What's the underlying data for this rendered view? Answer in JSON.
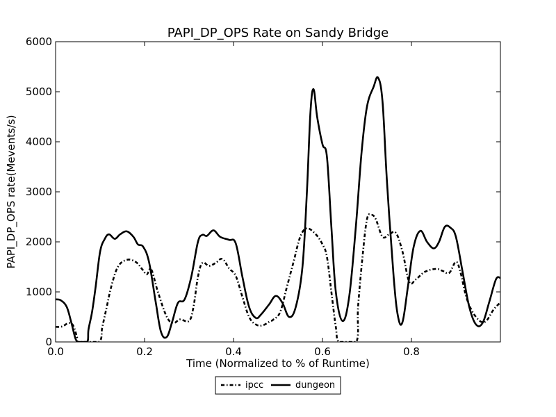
{
  "chart_data": {
    "type": "line",
    "title": "PAPI_DP_OPS Rate on Sandy Bridge",
    "xlabel": "Time (Normalized to % of Runtime)",
    "ylabel": "PAPI_DP_OPS rate(Mevents/s)",
    "xlim": [
      0.0,
      1.0
    ],
    "ylim": [
      0,
      6000
    ],
    "x_ticks": [
      0.0,
      0.2,
      0.4,
      0.6,
      0.8
    ],
    "x_tick_labels": [
      "0.0",
      "0.2",
      "0.4",
      "0.6",
      "0.8"
    ],
    "y_ticks": [
      0,
      1000,
      2000,
      3000,
      4000,
      5000,
      6000
    ],
    "y_tick_labels": [
      "0",
      "1000",
      "2000",
      "3000",
      "4000",
      "5000",
      "6000"
    ],
    "grid": false,
    "legend_position": "bottom-center, below axes",
    "series": [
      {
        "name": "ipcc",
        "style": "dash-dot",
        "color": "#000000",
        "points": [
          [
            0.0,
            300
          ],
          [
            0.015,
            310
          ],
          [
            0.03,
            380
          ],
          [
            0.04,
            320
          ],
          [
            0.048,
            100
          ],
          [
            0.052,
            0
          ],
          [
            0.097,
            0
          ],
          [
            0.105,
            300
          ],
          [
            0.115,
            700
          ],
          [
            0.125,
            1100
          ],
          [
            0.14,
            1500
          ],
          [
            0.16,
            1640
          ],
          [
            0.18,
            1600
          ],
          [
            0.195,
            1450
          ],
          [
            0.205,
            1350
          ],
          [
            0.215,
            1450
          ],
          [
            0.23,
            1000
          ],
          [
            0.25,
            500
          ],
          [
            0.265,
            380
          ],
          [
            0.28,
            450
          ],
          [
            0.3,
            420
          ],
          [
            0.31,
            700
          ],
          [
            0.32,
            1300
          ],
          [
            0.33,
            1580
          ],
          [
            0.345,
            1520
          ],
          [
            0.36,
            1580
          ],
          [
            0.375,
            1660
          ],
          [
            0.39,
            1470
          ],
          [
            0.405,
            1320
          ],
          [
            0.42,
            900
          ],
          [
            0.435,
            500
          ],
          [
            0.45,
            350
          ],
          [
            0.465,
            330
          ],
          [
            0.48,
            400
          ],
          [
            0.49,
            450
          ],
          [
            0.505,
            600
          ],
          [
            0.52,
            1100
          ],
          [
            0.535,
            1600
          ],
          [
            0.55,
            2100
          ],
          [
            0.565,
            2270
          ],
          [
            0.585,
            2150
          ],
          [
            0.6,
            1950
          ],
          [
            0.61,
            1700
          ],
          [
            0.62,
            1000
          ],
          [
            0.63,
            300
          ],
          [
            0.638,
            0
          ],
          [
            0.676,
            0
          ],
          [
            0.68,
            700
          ],
          [
            0.69,
            1700
          ],
          [
            0.7,
            2450
          ],
          [
            0.71,
            2540
          ],
          [
            0.72,
            2450
          ],
          [
            0.735,
            2100
          ],
          [
            0.75,
            2150
          ],
          [
            0.765,
            2180
          ],
          [
            0.78,
            1800
          ],
          [
            0.795,
            1200
          ],
          [
            0.81,
            1250
          ],
          [
            0.83,
            1400
          ],
          [
            0.855,
            1460
          ],
          [
            0.87,
            1420
          ],
          [
            0.885,
            1380
          ],
          [
            0.9,
            1600
          ],
          [
            0.91,
            1400
          ],
          [
            0.925,
            850
          ],
          [
            0.945,
            500
          ],
          [
            0.965,
            400
          ],
          [
            0.985,
            650
          ],
          [
            1.0,
            790
          ]
        ]
      },
      {
        "name": "dungeon",
        "style": "solid",
        "color": "#000000",
        "points": [
          [
            0.0,
            850
          ],
          [
            0.012,
            830
          ],
          [
            0.025,
            700
          ],
          [
            0.035,
            400
          ],
          [
            0.045,
            60
          ],
          [
            0.052,
            0
          ],
          [
            0.071,
            0
          ],
          [
            0.074,
            250
          ],
          [
            0.082,
            600
          ],
          [
            0.09,
            1100
          ],
          [
            0.1,
            1800
          ],
          [
            0.11,
            2050
          ],
          [
            0.12,
            2150
          ],
          [
            0.133,
            2060
          ],
          [
            0.145,
            2150
          ],
          [
            0.16,
            2210
          ],
          [
            0.175,
            2100
          ],
          [
            0.185,
            1950
          ],
          [
            0.197,
            1900
          ],
          [
            0.21,
            1600
          ],
          [
            0.225,
            800
          ],
          [
            0.237,
            200
          ],
          [
            0.25,
            100
          ],
          [
            0.262,
            400
          ],
          [
            0.275,
            780
          ],
          [
            0.29,
            850
          ],
          [
            0.305,
            1300
          ],
          [
            0.32,
            2000
          ],
          [
            0.33,
            2140
          ],
          [
            0.34,
            2120
          ],
          [
            0.355,
            2230
          ],
          [
            0.37,
            2100
          ],
          [
            0.39,
            2040
          ],
          [
            0.405,
            1970
          ],
          [
            0.42,
            1300
          ],
          [
            0.435,
            700
          ],
          [
            0.45,
            480
          ],
          [
            0.462,
            550
          ],
          [
            0.48,
            750
          ],
          [
            0.495,
            920
          ],
          [
            0.51,
            780
          ],
          [
            0.525,
            500
          ],
          [
            0.54,
            700
          ],
          [
            0.555,
            1500
          ],
          [
            0.565,
            3000
          ],
          [
            0.573,
            4600
          ],
          [
            0.58,
            5050
          ],
          [
            0.588,
            4500
          ],
          [
            0.6,
            3950
          ],
          [
            0.61,
            3700
          ],
          [
            0.62,
            2300
          ],
          [
            0.63,
            1000
          ],
          [
            0.645,
            420
          ],
          [
            0.66,
            900
          ],
          [
            0.675,
            2300
          ],
          [
            0.688,
            3800
          ],
          [
            0.7,
            4700
          ],
          [
            0.715,
            5100
          ],
          [
            0.725,
            5280
          ],
          [
            0.735,
            4800
          ],
          [
            0.745,
            3200
          ],
          [
            0.76,
            1300
          ],
          [
            0.77,
            500
          ],
          [
            0.78,
            400
          ],
          [
            0.792,
            1100
          ],
          [
            0.805,
            1900
          ],
          [
            0.82,
            2220
          ],
          [
            0.835,
            2000
          ],
          [
            0.85,
            1870
          ],
          [
            0.862,
            2000
          ],
          [
            0.875,
            2300
          ],
          [
            0.888,
            2280
          ],
          [
            0.9,
            2100
          ],
          [
            0.915,
            1400
          ],
          [
            0.93,
            700
          ],
          [
            0.945,
            350
          ],
          [
            0.96,
            380
          ],
          [
            0.975,
            800
          ],
          [
            0.99,
            1250
          ],
          [
            1.0,
            1280
          ]
        ]
      }
    ]
  }
}
